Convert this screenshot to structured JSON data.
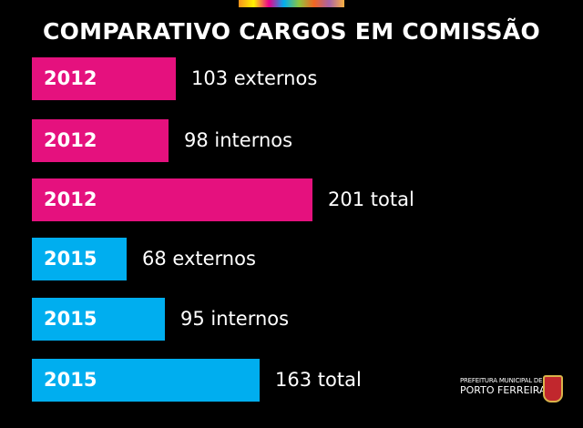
{
  "chart_data": {
    "type": "bar",
    "orientation": "horizontal",
    "title": "COMPARATIVO CARGOS EM COMISSÃO",
    "bars": [
      {
        "year": "2012",
        "value": 103,
        "label": "103 externos",
        "color": "#e5117e"
      },
      {
        "year": "2012",
        "value": 98,
        "label": "98 internos",
        "color": "#e5117e"
      },
      {
        "year": "2012",
        "value": 201,
        "label": "201 total",
        "color": "#e5117e"
      },
      {
        "year": "2015",
        "value": 68,
        "label": "68 externos",
        "color": "#00aeef"
      },
      {
        "year": "2015",
        "value": 95,
        "label": "95 internos",
        "color": "#00aeef"
      },
      {
        "year": "2015",
        "value": 163,
        "label": "163 total",
        "color": "#00aeef"
      }
    ],
    "xlim": [
      0,
      201
    ]
  },
  "logo": {
    "line1": "PREFEITURA MUNICIPAL DE",
    "line2": "PORTO FERREIRA"
  }
}
